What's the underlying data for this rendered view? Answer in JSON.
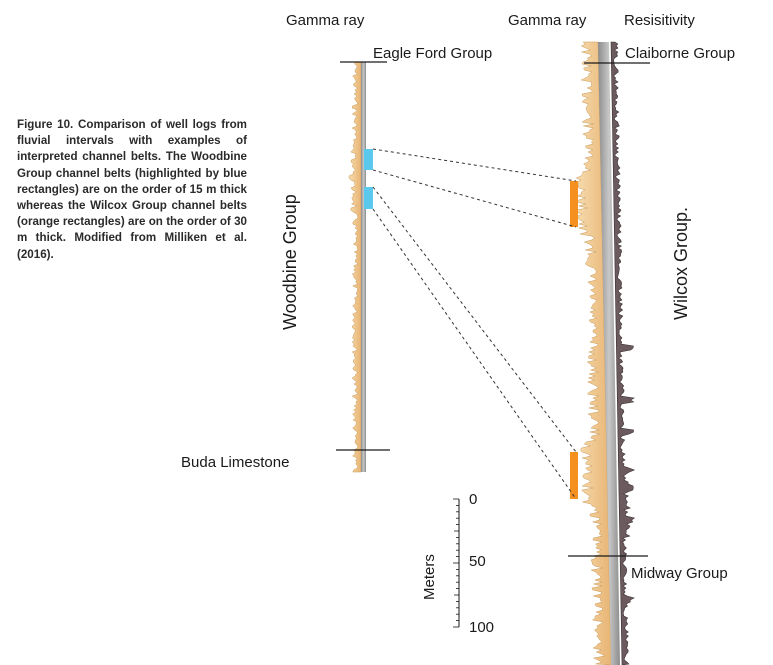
{
  "labels": {
    "gamma_left": "Gamma ray",
    "gamma_right": "Gamma ray",
    "resistivity": "Resisitivity",
    "eagle_ford": "Eagle Ford Group",
    "claiborne": "Claiborne Group",
    "woodbine": "Woodbine Group",
    "wilcox": "Wilcox Group.",
    "buda": "Buda Limestone",
    "midway": "Midway Group"
  },
  "caption": "Figure 10. Comparison of well logs from fluvial intervals with examples of interpreted channel belts. The Woodbine Group channel belts (highlighted by blue rectangles) are on the order of 15 m thick whereas the Wilcox Group channel belts (orange rectangles) are on the order of 30 m thick. Modified from Milliken et al. (2016).",
  "scale": {
    "axis_label": "Meters",
    "ticks": [
      "0",
      "50",
      "100"
    ]
  },
  "colors": {
    "woodbine_channel": "#5bc8ee",
    "wilcox_channel": "#f5901f",
    "gamma_fill": "#f0c98a",
    "log_axis": "#a9a9a9",
    "resistivity_fill": "#6b5a5e"
  }
}
